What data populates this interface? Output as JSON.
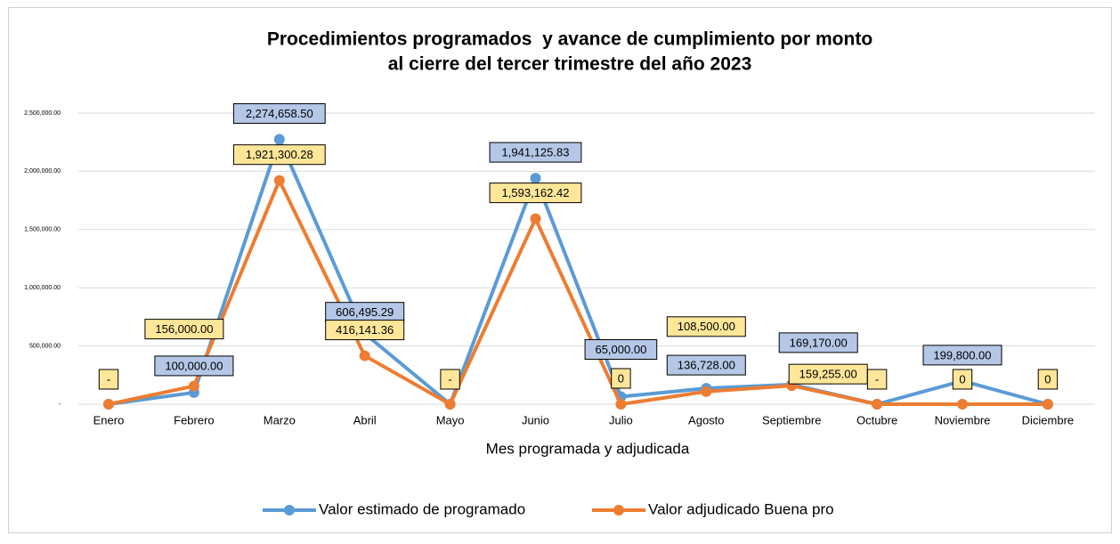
{
  "chart_data": {
    "type": "line",
    "title": [
      "Procedimientos programados  y avance de cumplimiento por monto",
      "al cierre del tercer trimestre del año 2023"
    ],
    "x_label": "Mes programada y adjudicada",
    "categories": [
      "Enero",
      "Febrero",
      "Marzo",
      "Abril",
      "Mayo",
      "Junio",
      "Julio",
      "Agosto",
      "Septiembre",
      "Octubre",
      "Noviembre",
      "Diciembre"
    ],
    "series": [
      {
        "name": "Valor estimado de programado",
        "color": "#5b9bd5",
        "label_color": "#b4c7e7",
        "values": [
          0,
          100000,
          2274658.5,
          606495.29,
          0,
          1941125.83,
          65000,
          136728,
          169170,
          0,
          199800,
          0
        ],
        "value_labels": [
          null,
          "100,000.00",
          "2,274,658.50",
          "606,495.29",
          null,
          "1,941,125.83",
          "65,000.00",
          "136,728.00",
          "169,170.00",
          null,
          "199,800.00",
          null
        ]
      },
      {
        "name": "Valor adjudicado Buena pro",
        "color": "#ed7d31",
        "label_color": "#ffe699",
        "values": [
          0,
          156000,
          1921300.28,
          416141.36,
          0,
          1593162.42,
          0,
          108500,
          159255,
          0,
          0,
          0
        ],
        "value_labels": [
          "-",
          "156,000.00",
          "1,921,300.28",
          "416,141.36",
          "-",
          "1,593,162.42",
          "0",
          "108,500.00",
          "159,255.00",
          "-",
          "0",
          "0"
        ]
      }
    ],
    "ylim": [
      0,
      2500000
    ],
    "yticks": [
      {
        "value": 0,
        "label": "-"
      },
      {
        "value": 500000,
        "label": "500,000.00"
      },
      {
        "value": 1000000,
        "label": "1,000,000.00"
      },
      {
        "value": 1500000,
        "label": "1,500,000.00"
      },
      {
        "value": 2000000,
        "label": "2,000,000.00"
      },
      {
        "value": 2500000,
        "label": "2,500,000.00"
      }
    ],
    "grid": true,
    "legend": "bottom"
  }
}
